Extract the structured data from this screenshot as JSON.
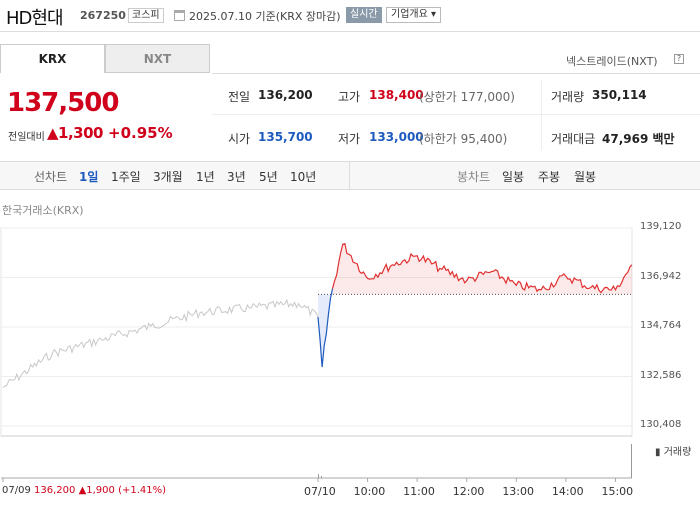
{
  "header": {
    "name": "HD현대",
    "code": "267250",
    "market": "코스피",
    "date_text": "2025.07.10 기준(KRX 장마감)",
    "realtime_label": "실시간",
    "company_label": "기업개요 ▾"
  },
  "tabs": [
    {
      "label": "KRX",
      "active": true
    },
    {
      "label": "NXT",
      "active": false
    }
  ],
  "nxt_link": "넥스트레이드(NXT)",
  "price": {
    "current": "137,500",
    "change_label": "전일대비",
    "change_value": "▲1,300",
    "change_pct": "+0.95%"
  },
  "quote": {
    "prev_label": "전일",
    "prev_value": "136,200",
    "high_label": "고가",
    "high_value": "138,400",
    "upper_limit": "(상한가 177,000)",
    "volume_label": "거래량",
    "volume_value": "350,114",
    "open_label": "시가",
    "open_value": "135,700",
    "low_label": "저가",
    "low_value": "133,000",
    "lower_limit": "(하한가 95,400)",
    "amount_label": "거래대금",
    "amount_value": "47,969 백만"
  },
  "periods": {
    "line_label": "선차트",
    "line_items": [
      "1일",
      "1주일",
      "3개월",
      "1년",
      "3년",
      "5년",
      "10년"
    ],
    "active": "1일",
    "candle_label": "봉차트",
    "candle_items": [
      "일봉",
      "주봉",
      "월봉"
    ]
  },
  "chart_data": {
    "type": "line",
    "source_label": "한국거래소(KRX)",
    "y_ticks": [
      "139,120",
      "136,942",
      "134,764",
      "132,586",
      "130,408"
    ],
    "ylim": [
      130408,
      139120
    ],
    "x_ticks": [
      "07/09",
      "07/10",
      "10:00",
      "11:00",
      "12:00",
      "13:00",
      "14:00",
      "15:00"
    ],
    "prev_close": 136200,
    "series": [
      {
        "x": [
          "07/09 09:00",
          "07/09 10:00",
          "07/09 11:00",
          "07/09 12:00",
          "07/09 13:00",
          "07/09 14:00",
          "07/09 15:00",
          "07/10 09:00",
          "07/10 09:05",
          "07/10 09:15",
          "07/10 09:30",
          "07/10 10:00",
          "07/10 10:30",
          "07/10 11:00",
          "07/10 11:30",
          "07/10 12:00",
          "07/10 12:30",
          "07/10 13:00",
          "07/10 13:30",
          "07/10 14:00",
          "07/10 14:30",
          "07/10 15:00",
          "07/10 15:20"
        ],
        "values": [
          132100,
          133600,
          134200,
          134800,
          135400,
          135600,
          135800,
          135200,
          133000,
          136000,
          138400,
          136900,
          137500,
          137900,
          137300,
          136800,
          137200,
          136600,
          136400,
          137000,
          136500,
          136400,
          137500
        ]
      }
    ],
    "volume_label": "거래량",
    "prev_day_info": {
      "date": "07/09",
      "close": "136,200",
      "change": "▲1,900",
      "pct": "(+1.41%)"
    }
  }
}
